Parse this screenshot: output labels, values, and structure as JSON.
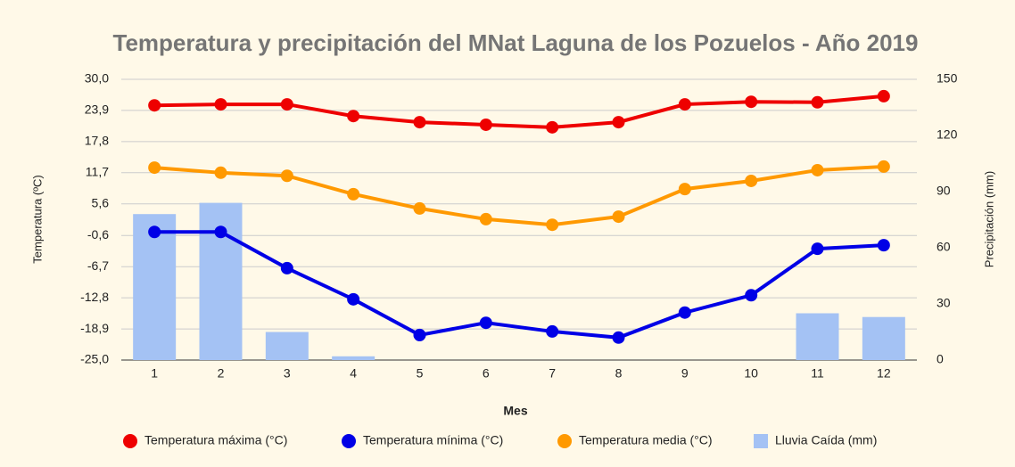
{
  "chart_data": {
    "type": "combo",
    "title": "Temperatura y precipitación del MNat Laguna de los Pozuelos - Año 2019",
    "x_label": "Mes",
    "y_label": "Temperatura (ºC)",
    "y2_label": "Precipitación (mm)",
    "categories": [
      "1",
      "2",
      "3",
      "4",
      "5",
      "6",
      "7",
      "8",
      "9",
      "10",
      "11",
      "12"
    ],
    "ylim": [
      -25,
      30
    ],
    "yticks": [
      {
        "value": -25,
        "label": "-25,0"
      },
      {
        "value": -18.9,
        "label": "-18,9"
      },
      {
        "value": -12.8,
        "label": "-12,8"
      },
      {
        "value": -6.7,
        "label": "-6,7"
      },
      {
        "value": -0.6,
        "label": "-0,6"
      },
      {
        "value": 5.6,
        "label": "5,6"
      },
      {
        "value": 11.7,
        "label": "11,7"
      },
      {
        "value": 17.8,
        "label": "17,8"
      },
      {
        "value": 23.9,
        "label": "23,9"
      },
      {
        "value": 30,
        "label": "30,0"
      }
    ],
    "y2lim": [
      0,
      150
    ],
    "y2ticks": [
      0,
      30,
      60,
      90,
      120,
      150
    ],
    "grid": true,
    "legend": "bottom",
    "series": [
      {
        "name": "Temperatura máxima (°C)",
        "type": "line",
        "color": "#ee0000",
        "values": [
          24.9,
          25.1,
          25.1,
          22.8,
          21.6,
          21.1,
          20.6,
          21.6,
          25.1,
          25.6,
          25.5,
          26.7
        ]
      },
      {
        "name": "Temperatura mínima (°C)",
        "type": "line",
        "color": "#0000e6",
        "values": [
          0.1,
          0.1,
          -7.0,
          -13.1,
          -20.1,
          -17.7,
          -19.4,
          -20.6,
          -15.7,
          -12.3,
          -3.2,
          -2.5
        ]
      },
      {
        "name": "Temperatura media (°C)",
        "type": "line",
        "color": "#ff9900",
        "values": [
          12.7,
          11.7,
          11.1,
          7.5,
          4.7,
          2.6,
          1.5,
          3.1,
          8.5,
          10.1,
          12.2,
          12.9
        ]
      },
      {
        "name": "Lluvia Caída (mm)",
        "type": "bar",
        "axis": "y2",
        "color": "#a4c2f4",
        "values": [
          78,
          84,
          15,
          2,
          0,
          0,
          0,
          0,
          0,
          0,
          25,
          23
        ]
      }
    ]
  }
}
